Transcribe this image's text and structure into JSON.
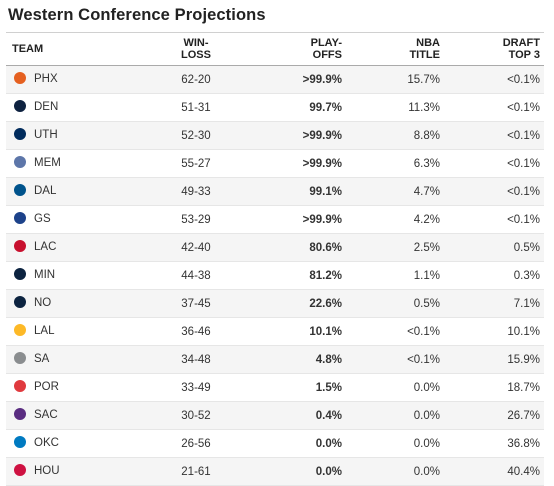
{
  "title": "Western Conference Projections",
  "headers": {
    "team": "TEAM",
    "winloss_1": "WIN-",
    "winloss_2": "LOSS",
    "playoffs_1": "PLAY-",
    "playoffs_2": "OFFS",
    "nba_title_1": "NBA",
    "nba_title_2": "TITLE",
    "draft_1": "DRAFT",
    "draft_2": "TOP 3"
  },
  "rows": [
    {
      "team": "PHX",
      "logo_color": "#e56020",
      "winloss": "62-20",
      "playoffs": ">99.9%",
      "title": "15.7%",
      "draft": "<0.1%"
    },
    {
      "team": "DEN",
      "logo_color": "#0e2240",
      "winloss": "51-31",
      "playoffs": "99.7%",
      "title": "11.3%",
      "draft": "<0.1%"
    },
    {
      "team": "UTH",
      "logo_color": "#002b5c",
      "winloss": "52-30",
      "playoffs": ">99.9%",
      "title": "8.8%",
      "draft": "<0.1%"
    },
    {
      "team": "MEM",
      "logo_color": "#5d76a9",
      "winloss": "55-27",
      "playoffs": ">99.9%",
      "title": "6.3%",
      "draft": "<0.1%"
    },
    {
      "team": "DAL",
      "logo_color": "#00538c",
      "winloss": "49-33",
      "playoffs": "99.1%",
      "title": "4.7%",
      "draft": "<0.1%"
    },
    {
      "team": "GS",
      "logo_color": "#1d428a",
      "winloss": "53-29",
      "playoffs": ">99.9%",
      "title": "4.2%",
      "draft": "<0.1%"
    },
    {
      "team": "LAC",
      "logo_color": "#c8102e",
      "winloss": "42-40",
      "playoffs": "80.6%",
      "title": "2.5%",
      "draft": "0.5%"
    },
    {
      "team": "MIN",
      "logo_color": "#0c2340",
      "winloss": "44-38",
      "playoffs": "81.2%",
      "title": "1.1%",
      "draft": "0.3%"
    },
    {
      "team": "NO",
      "logo_color": "#0c2340",
      "winloss": "37-45",
      "playoffs": "22.6%",
      "title": "0.5%",
      "draft": "7.1%"
    },
    {
      "team": "LAL",
      "logo_color": "#fdb927",
      "winloss": "36-46",
      "playoffs": "10.1%",
      "title": "<0.1%",
      "draft": "10.1%"
    },
    {
      "team": "SA",
      "logo_color": "#8a8d8f",
      "winloss": "34-48",
      "playoffs": "4.8%",
      "title": "<0.1%",
      "draft": "15.9%"
    },
    {
      "team": "POR",
      "logo_color": "#e03a3e",
      "winloss": "33-49",
      "playoffs": "1.5%",
      "title": "0.0%",
      "draft": "18.7%"
    },
    {
      "team": "SAC",
      "logo_color": "#5a2d81",
      "winloss": "30-52",
      "playoffs": "0.4%",
      "title": "0.0%",
      "draft": "26.7%"
    },
    {
      "team": "OKC",
      "logo_color": "#007ac1",
      "winloss": "26-56",
      "playoffs": "0.0%",
      "title": "0.0%",
      "draft": "36.8%"
    },
    {
      "team": "HOU",
      "logo_color": "#ce1141",
      "winloss": "21-61",
      "playoffs": "0.0%",
      "title": "0.0%",
      "draft": "40.4%"
    }
  ]
}
